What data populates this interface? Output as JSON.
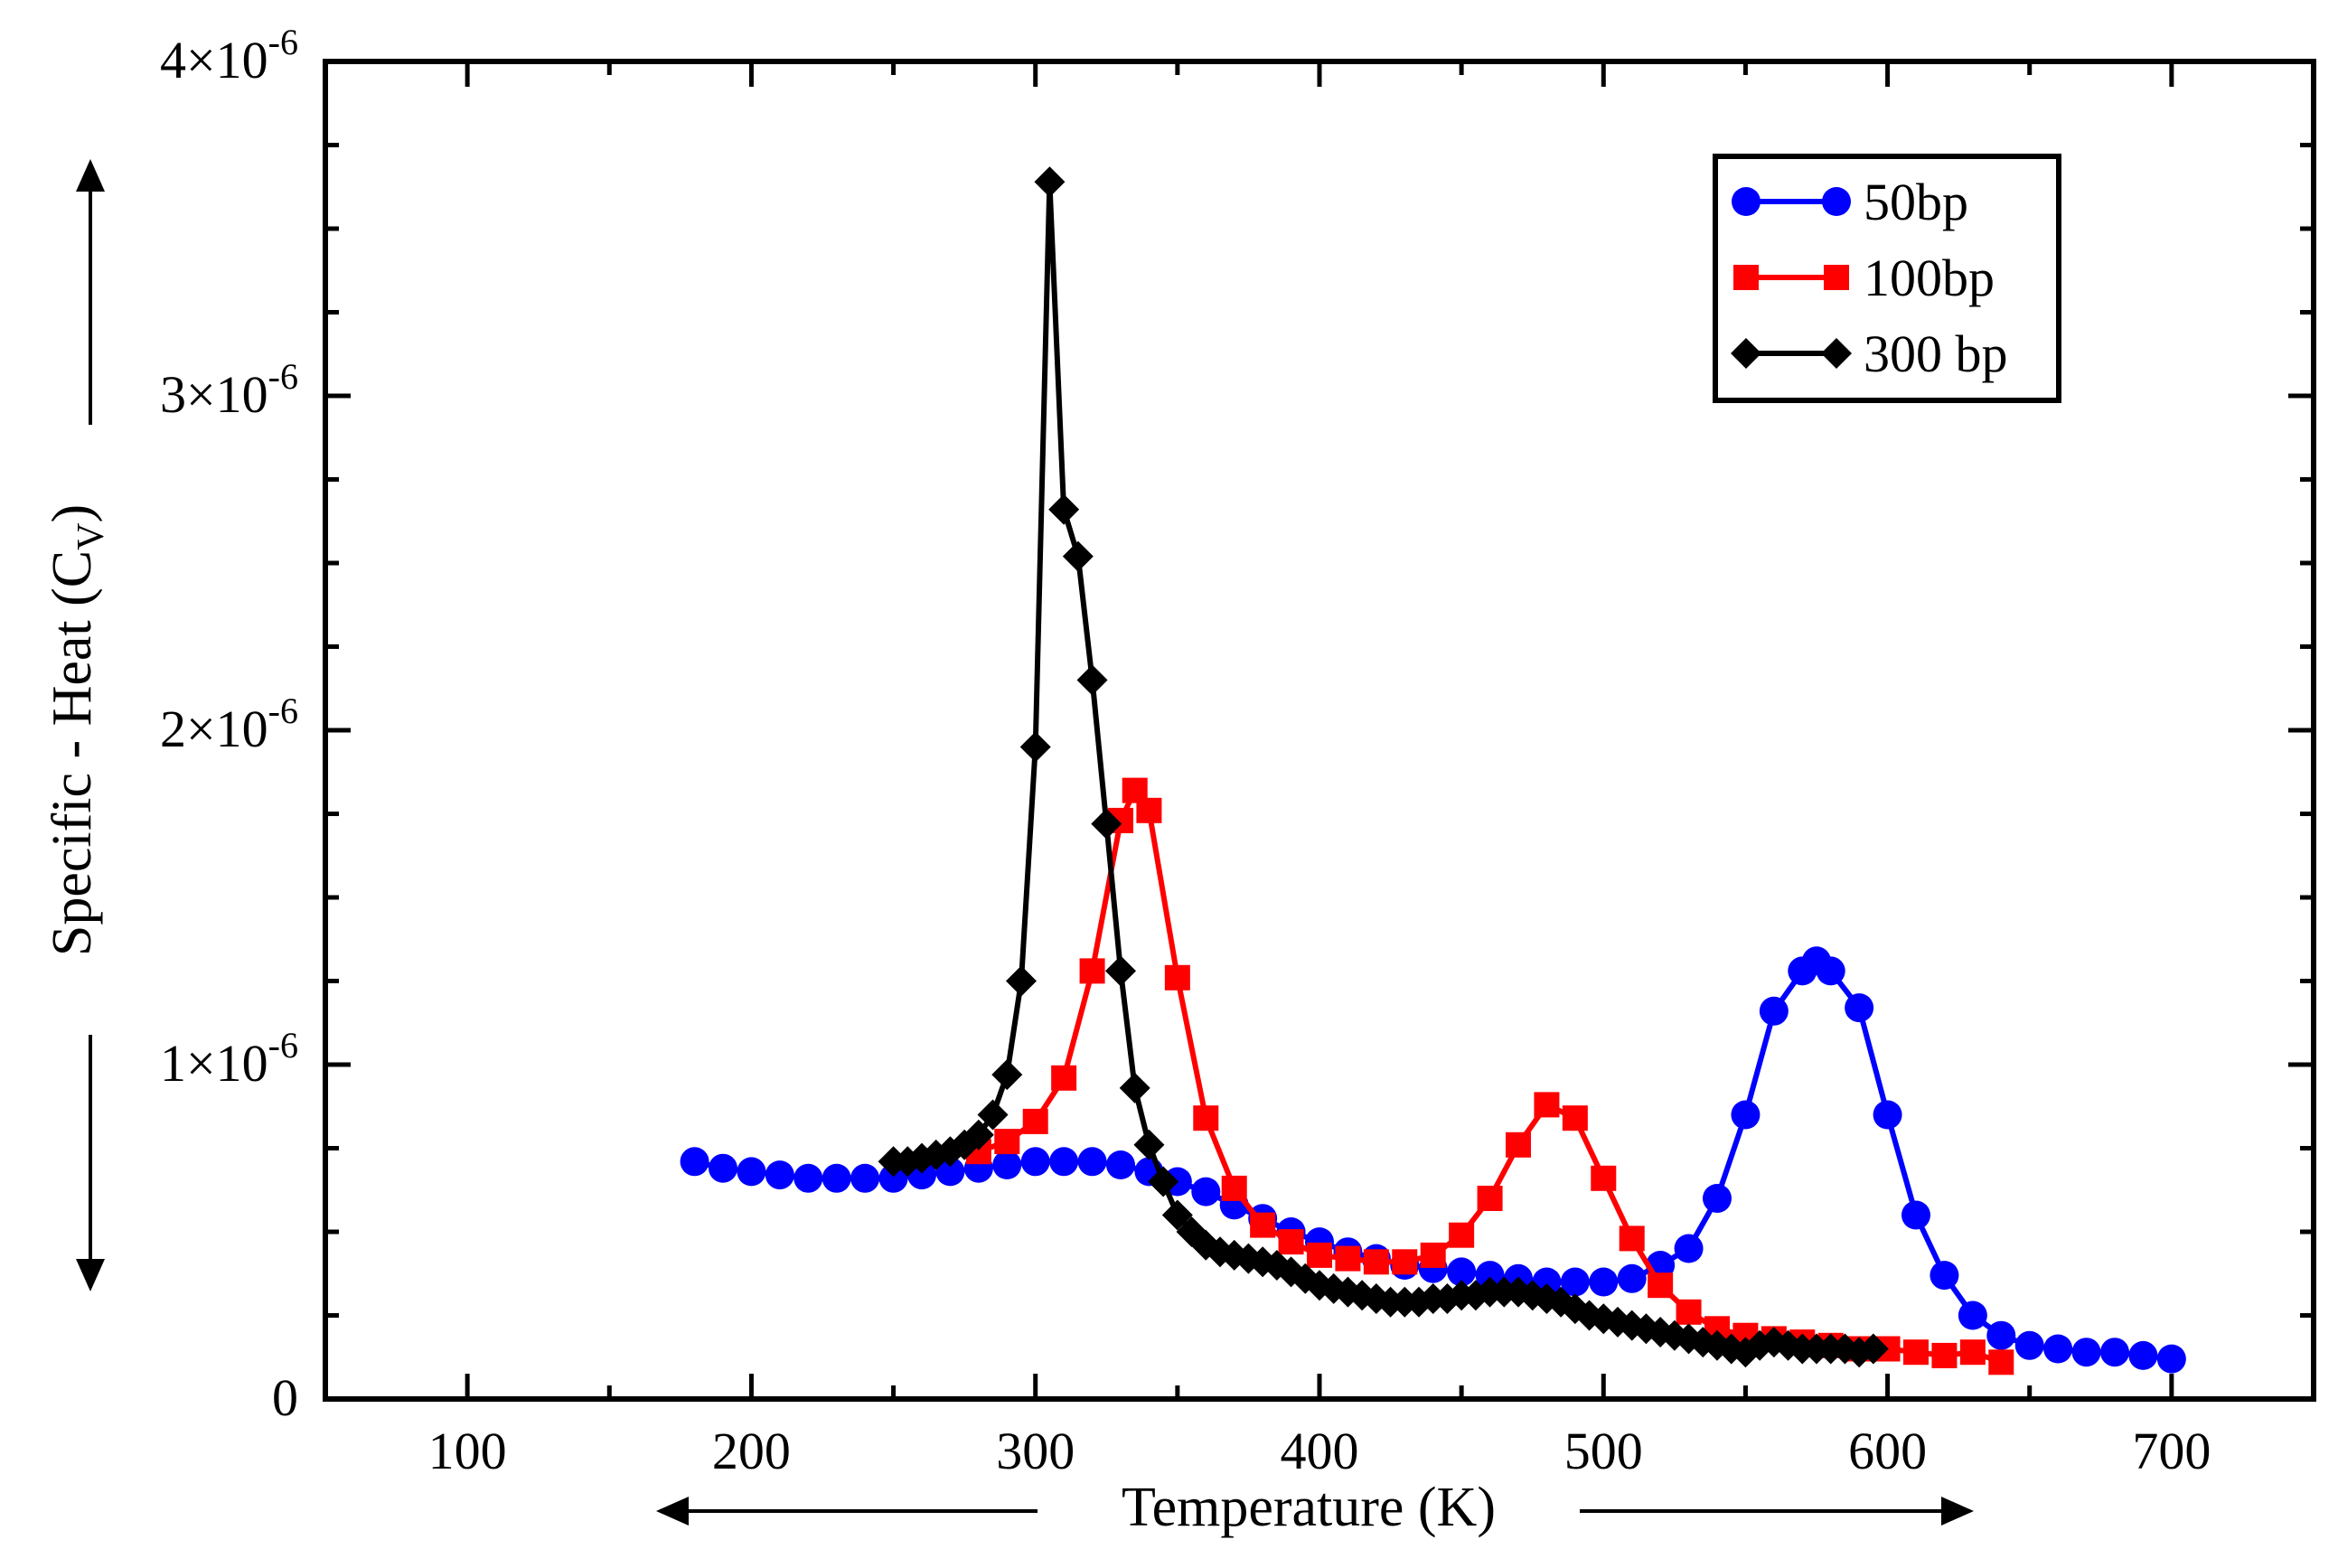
{
  "chart_data": {
    "type": "line",
    "title": "",
    "xlabel": "Temperature (K)",
    "ylabel": {
      "main": "Specific - Heat (C",
      "sub": "V",
      "close": ")"
    },
    "xlim": [
      50,
      750
    ],
    "ylim": [
      0,
      4e-06
    ],
    "x_ticks": [
      {
        "value": 100,
        "label": "100"
      },
      {
        "value": 200,
        "label": "200"
      },
      {
        "value": 300,
        "label": "300"
      },
      {
        "value": 400,
        "label": "400"
      },
      {
        "value": 500,
        "label": "500"
      },
      {
        "value": 600,
        "label": "600"
      },
      {
        "value": 700,
        "label": "700"
      }
    ],
    "y_ticks": [
      {
        "value": 0,
        "label": "0",
        "exp": ""
      },
      {
        "value": 1e-06,
        "label": "1×10",
        "exp": "-6"
      },
      {
        "value": 2e-06,
        "label": "2×10",
        "exp": "-6"
      },
      {
        "value": 3e-06,
        "label": "3×10",
        "exp": "-6"
      },
      {
        "value": 4e-06,
        "label": "4×10",
        "exp": "-6"
      }
    ],
    "legend_position": "top-right",
    "series": [
      {
        "name": "50bp",
        "color": "#0000ff",
        "marker": "circle",
        "x": [
          180,
          190,
          200,
          210,
          220,
          230,
          240,
          250,
          260,
          270,
          280,
          290,
          300,
          310,
          320,
          330,
          340,
          350,
          360,
          370,
          380,
          390,
          400,
          410,
          420,
          430,
          440,
          450,
          460,
          470,
          480,
          490,
          500,
          510,
          520,
          530,
          540,
          550,
          560,
          570,
          575,
          580,
          590,
          600,
          610,
          620,
          630,
          640,
          650,
          660,
          670,
          680,
          690,
          700
        ],
        "y": [
          7.1e-07,
          6.9e-07,
          6.8e-07,
          6.7e-07,
          6.6e-07,
          6.6e-07,
          6.6e-07,
          6.6e-07,
          6.7e-07,
          6.8e-07,
          6.9e-07,
          7e-07,
          7.1e-07,
          7.1e-07,
          7.1e-07,
          7e-07,
          6.8e-07,
          6.5e-07,
          6.2e-07,
          5.8e-07,
          5.4e-07,
          5e-07,
          4.7e-07,
          4.4e-07,
          4.2e-07,
          4e-07,
          3.9e-07,
          3.8e-07,
          3.7e-07,
          3.6e-07,
          3.5e-07,
          3.5e-07,
          3.5e-07,
          3.6e-07,
          4e-07,
          4.5e-07,
          6e-07,
          8.5e-07,
          1.16e-06,
          1.28e-06,
          1.31e-06,
          1.28e-06,
          1.17e-06,
          8.5e-07,
          5.5e-07,
          3.7e-07,
          2.5e-07,
          1.9e-07,
          1.6e-07,
          1.5e-07,
          1.4e-07,
          1.4e-07,
          1.3e-07,
          1.2e-07
        ]
      },
      {
        "name": "100bp",
        "color": "#ff0000",
        "marker": "square",
        "x": [
          280,
          290,
          300,
          310,
          320,
          330,
          335,
          340,
          350,
          360,
          370,
          380,
          390,
          400,
          410,
          420,
          430,
          440,
          450,
          460,
          470,
          480,
          490,
          500,
          510,
          520,
          530,
          540,
          550,
          560,
          570,
          580,
          590,
          600,
          610,
          620,
          630,
          640
        ],
        "y": [
          7.4e-07,
          7.7e-07,
          8.3e-07,
          9.6e-07,
          1.28e-06,
          1.73e-06,
          1.82e-06,
          1.76e-06,
          1.26e-06,
          8.4e-07,
          6.3e-07,
          5.2e-07,
          4.7e-07,
          4.3e-07,
          4.2e-07,
          4.1e-07,
          4.1e-07,
          4.3e-07,
          4.9e-07,
          6e-07,
          7.6e-07,
          8.8e-07,
          8.4e-07,
          6.6e-07,
          4.8e-07,
          3.4e-07,
          2.6e-07,
          2.1e-07,
          1.9e-07,
          1.8e-07,
          1.7e-07,
          1.6e-07,
          1.5e-07,
          1.5e-07,
          1.4e-07,
          1.3e-07,
          1.4e-07,
          1.1e-07
        ]
      },
      {
        "name": "300 bp",
        "color": "#000000",
        "marker": "diamond",
        "x": [
          250,
          255,
          260,
          265,
          270,
          275,
          280,
          285,
          290,
          295,
          300,
          305,
          310,
          315,
          320,
          325,
          330,
          335,
          340,
          345,
          350,
          355,
          360,
          365,
          370,
          375,
          380,
          385,
          390,
          395,
          400,
          405,
          410,
          415,
          420,
          425,
          430,
          435,
          440,
          445,
          450,
          455,
          460,
          465,
          470,
          475,
          480,
          485,
          490,
          495,
          500,
          505,
          510,
          515,
          520,
          525,
          530,
          535,
          540,
          545,
          550,
          555,
          560,
          565,
          570,
          575,
          580,
          585,
          590,
          595
        ],
        "y": [
          7.1e-07,
          7.1e-07,
          7.2e-07,
          7.3e-07,
          7.4e-07,
          7.6e-07,
          7.9e-07,
          8.5e-07,
          9.7e-07,
          1.25e-06,
          1.95e-06,
          3.64e-06,
          2.66e-06,
          2.52e-06,
          2.15e-06,
          1.72e-06,
          1.28e-06,
          9.3e-07,
          7.6e-07,
          6.5e-07,
          5.5e-07,
          5e-07,
          4.6e-07,
          4.4e-07,
          4.3e-07,
          4.2e-07,
          4.1e-07,
          4e-07,
          3.8e-07,
          3.6e-07,
          3.4e-07,
          3.3e-07,
          3.2e-07,
          3.1e-07,
          3e-07,
          2.9e-07,
          2.9e-07,
          2.9e-07,
          3e-07,
          3e-07,
          3.1e-07,
          3.1e-07,
          3.2e-07,
          3.2e-07,
          3.2e-07,
          3.1e-07,
          3e-07,
          2.9e-07,
          2.7e-07,
          2.5e-07,
          2.4e-07,
          2.3e-07,
          2.2e-07,
          2.1e-07,
          2e-07,
          1.9e-07,
          1.8e-07,
          1.7e-07,
          1.6e-07,
          1.5e-07,
          1.4e-07,
          1.6e-07,
          1.7e-07,
          1.6e-07,
          1.5e-07,
          1.5e-07,
          1.5e-07,
          1.5e-07,
          1.4e-07,
          1.5e-07
        ]
      }
    ]
  }
}
